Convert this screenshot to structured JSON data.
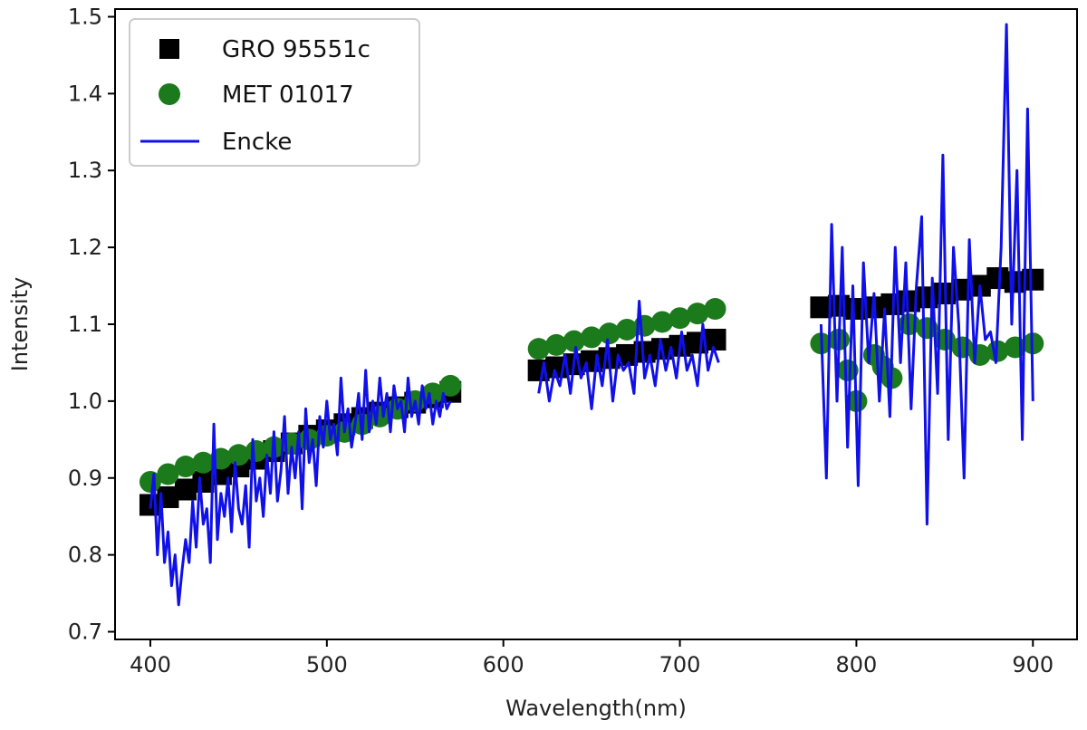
{
  "chart_data": {
    "type": "scatter",
    "xlabel": "Wavelength(nm)",
    "ylabel": "Intensity",
    "xlim": [
      380,
      925
    ],
    "ylim": [
      0.69,
      1.51
    ],
    "xticks": [
      400,
      500,
      600,
      700,
      800,
      900
    ],
    "yticks": [
      0.7,
      0.8,
      0.9,
      1.0,
      1.1,
      1.2,
      1.3,
      1.4,
      1.5
    ],
    "xtick_labels": [
      "400",
      "500",
      "600",
      "700",
      "800",
      "900"
    ],
    "ytick_labels": [
      "0.7",
      "0.8",
      "0.9",
      "1.0",
      "1.1",
      "1.2",
      "1.3",
      "1.4",
      "1.5"
    ],
    "grid": false,
    "legend": "top-left",
    "series": [
      {
        "name": "GRO 95551c",
        "kind": "scatter",
        "marker": "square",
        "color": "#000000",
        "x": [
          400,
          410,
          420,
          430,
          440,
          450,
          460,
          470,
          480,
          490,
          500,
          510,
          520,
          530,
          540,
          550,
          560,
          570,
          620,
          630,
          640,
          650,
          660,
          670,
          680,
          690,
          700,
          710,
          720,
          780,
          790,
          800,
          810,
          820,
          830,
          840,
          850,
          860,
          870,
          880,
          890,
          900
        ],
        "y": [
          0.865,
          0.875,
          0.885,
          0.895,
          0.905,
          0.915,
          0.925,
          0.935,
          0.945,
          0.955,
          0.962,
          0.97,
          0.978,
          0.985,
          0.992,
          0.998,
          1.005,
          1.012,
          1.04,
          1.044,
          1.048,
          1.052,
          1.056,
          1.06,
          1.064,
          1.068,
          1.072,
          1.076,
          1.08,
          1.122,
          1.124,
          1.12,
          1.122,
          1.126,
          1.13,
          1.135,
          1.14,
          1.145,
          1.15,
          1.16,
          1.155,
          1.158
        ]
      },
      {
        "name": "MET 01017",
        "kind": "scatter",
        "marker": "circle",
        "color": "#1b7a1b",
        "x": [
          400,
          410,
          420,
          430,
          440,
          450,
          460,
          470,
          480,
          490,
          500,
          510,
          520,
          530,
          540,
          550,
          560,
          570,
          620,
          630,
          640,
          650,
          660,
          670,
          680,
          690,
          700,
          710,
          720,
          780,
          790,
          795,
          800,
          810,
          815,
          820,
          830,
          840,
          850,
          860,
          870,
          880,
          890,
          900
        ],
        "y": [
          0.895,
          0.905,
          0.915,
          0.92,
          0.925,
          0.93,
          0.935,
          0.94,
          0.945,
          0.95,
          0.955,
          0.96,
          0.97,
          0.98,
          0.99,
          1.0,
          1.01,
          1.02,
          1.068,
          1.073,
          1.078,
          1.083,
          1.088,
          1.093,
          1.098,
          1.103,
          1.108,
          1.114,
          1.12,
          1.075,
          1.08,
          1.04,
          1.0,
          1.06,
          1.045,
          1.03,
          1.1,
          1.095,
          1.08,
          1.07,
          1.06,
          1.065,
          1.07,
          1.075
        ]
      },
      {
        "name": "Encke",
        "kind": "line",
        "color": "#1010e8",
        "segments": [
          {
            "x": [
              400,
              402,
              404,
              406,
              408,
              410,
              412,
              414,
              416,
              418,
              420,
              422,
              424,
              426,
              428,
              430,
              432,
              434,
              436,
              438,
              440,
              442,
              444,
              446,
              448,
              450,
              452,
              454,
              456,
              458,
              460,
              462,
              464,
              466,
              468,
              470,
              472,
              474,
              476,
              478,
              480,
              482,
              484,
              486,
              488,
              490,
              492,
              494,
              496,
              498,
              500,
              502,
              504,
              506,
              508,
              510,
              512,
              514,
              516,
              518,
              520,
              522,
              524,
              526,
              528,
              530,
              532,
              534,
              536,
              538,
              540,
              542,
              544,
              546,
              548,
              550,
              552,
              554,
              556,
              558,
              560,
              562,
              564,
              566,
              568,
              570
            ],
            "y": [
              0.86,
              0.905,
              0.8,
              0.88,
              0.79,
              0.83,
              0.76,
              0.8,
              0.735,
              0.78,
              0.82,
              0.79,
              0.87,
              0.81,
              0.9,
              0.84,
              0.86,
              0.79,
              0.97,
              0.82,
              0.88,
              0.85,
              0.9,
              0.83,
              0.92,
              0.86,
              0.84,
              0.89,
              0.81,
              0.95,
              0.87,
              0.9,
              0.85,
              0.93,
              0.88,
              0.96,
              0.87,
              0.91,
              0.98,
              0.88,
              0.94,
              0.9,
              0.96,
              0.86,
              0.99,
              0.92,
              0.95,
              0.89,
              0.98,
              0.94,
              1.0,
              0.95,
              0.97,
              0.93,
              1.03,
              0.96,
              0.99,
              0.94,
              0.97,
              1.01,
              0.95,
              1.04,
              0.96,
              1.0,
              0.97,
              1.03,
              0.98,
              1.01,
              0.96,
              1.02,
              0.99,
              1.0,
              0.96,
              1.03,
              0.98,
              1.0,
              0.97,
              1.02,
              0.99,
              1.01,
              0.97,
              1.0,
              0.98,
              1.01,
              0.99,
              1.0
            ]
          },
          {
            "x": [
              620,
              623,
              626,
              629,
              632,
              635,
              638,
              641,
              644,
              647,
              650,
              653,
              656,
              659,
              662,
              665,
              668,
              671,
              674,
              677,
              680,
              683,
              686,
              689,
              692,
              695,
              698,
              701,
              704,
              707,
              710,
              713,
              716,
              719,
              722
            ],
            "y": [
              1.01,
              1.05,
              1.0,
              1.04,
              1.02,
              1.06,
              1.01,
              1.07,
              1.03,
              1.05,
              0.99,
              1.06,
              1.02,
              1.08,
              1.0,
              1.06,
              1.04,
              1.05,
              1.01,
              1.13,
              1.03,
              1.06,
              1.02,
              1.08,
              1.04,
              1.07,
              1.03,
              1.09,
              1.04,
              1.06,
              1.02,
              1.1,
              1.04,
              1.07,
              1.05
            ]
          },
          {
            "x": [
              780,
              783,
              786,
              789,
              792,
              795,
              798,
              801,
              804,
              807,
              810,
              813,
              816,
              819,
              822,
              825,
              828,
              831,
              834,
              837,
              840,
              843,
              846,
              849,
              852,
              855,
              858,
              861,
              864,
              867,
              870,
              873,
              876,
              879,
              882,
              885,
              888,
              891,
              894,
              897,
              900
            ],
            "y": [
              1.1,
              0.9,
              1.23,
              1.0,
              1.2,
              0.94,
              1.15,
              0.89,
              1.18,
              1.05,
              1.14,
              1.0,
              1.12,
              0.98,
              1.2,
              1.05,
              1.18,
              0.99,
              1.15,
              1.24,
              0.84,
              1.16,
              1.01,
              1.32,
              0.95,
              1.2,
              1.1,
              0.9,
              1.21,
              1.05,
              1.15,
              1.08,
              1.09,
              1.05,
              1.2,
              1.49,
              1.1,
              1.3,
              0.95,
              1.38,
              1.0
            ]
          }
        ]
      }
    ]
  }
}
